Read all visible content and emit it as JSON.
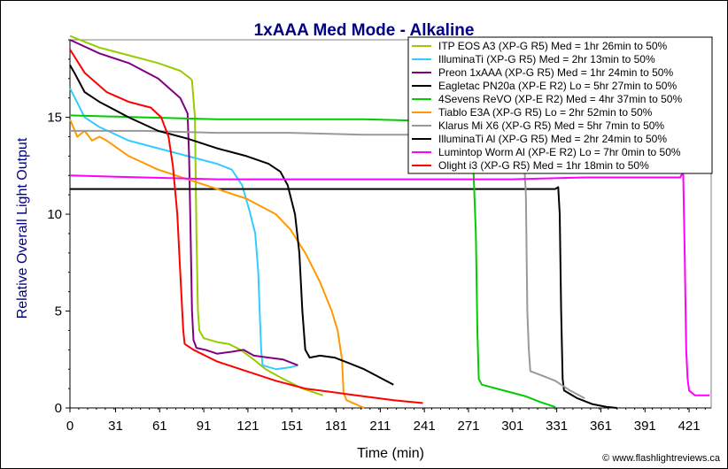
{
  "chart_data": {
    "type": "line",
    "title": "1xAAA Med Mode - Alkaline",
    "xlabel": "Time (min)",
    "ylabel": "Relative Overall Light Output",
    "xlim": [
      0,
      436
    ],
    "ylim": [
      0,
      19
    ],
    "xticks": [
      0,
      31,
      61,
      91,
      121,
      151,
      181,
      211,
      241,
      271,
      301,
      331,
      361,
      391,
      421
    ],
    "yticks": [
      0,
      5,
      10,
      15
    ],
    "grid": false,
    "legend_position": "top-right",
    "credit": "© www.flashlightreviews.ca",
    "series": [
      {
        "name": "ITP EOS A3 (XP-G R5) Med = 1hr 26min to 50%",
        "color": "#99cc00",
        "points": [
          [
            0,
            19.2
          ],
          [
            20,
            18.6
          ],
          [
            40,
            18.2
          ],
          [
            60,
            17.8
          ],
          [
            75,
            17.4
          ],
          [
            82,
            17.0
          ],
          [
            83,
            16.9
          ],
          [
            85,
            15.0
          ],
          [
            86,
            9.0
          ],
          [
            87,
            5.0
          ],
          [
            88,
            4.0
          ],
          [
            91,
            3.6
          ],
          [
            100,
            3.4
          ],
          [
            108,
            3.3
          ],
          [
            116,
            3.0
          ],
          [
            125,
            2.5
          ],
          [
            133,
            2.0
          ],
          [
            145,
            1.5
          ],
          [
            158,
            1.0
          ],
          [
            172,
            0.65
          ]
        ]
      },
      {
        "name": "IlluminaTi (XP-G R5) Med = 2hr 13min to 50%",
        "color": "#33ccff",
        "points": [
          [
            0,
            16.5
          ],
          [
            10,
            15.0
          ],
          [
            20,
            14.5
          ],
          [
            40,
            13.8
          ],
          [
            60,
            13.4
          ],
          [
            80,
            13.0
          ],
          [
            100,
            12.6
          ],
          [
            110,
            12.3
          ],
          [
            117,
            11.5
          ],
          [
            122,
            10.2
          ],
          [
            126,
            9.0
          ],
          [
            128,
            7.0
          ],
          [
            129,
            5.0
          ],
          [
            130,
            3.0
          ],
          [
            131,
            2.2
          ],
          [
            140,
            2.0
          ],
          [
            150,
            2.1
          ],
          [
            155,
            2.2
          ]
        ]
      },
      {
        "name": "Preon 1xAAA (XP-G R5) Med = 1hr 24min to 50%",
        "color": "#800080",
        "points": [
          [
            0,
            19.0
          ],
          [
            20,
            18.3
          ],
          [
            40,
            17.8
          ],
          [
            60,
            17.0
          ],
          [
            75,
            16.0
          ],
          [
            80,
            15.2
          ],
          [
            81,
            13.0
          ],
          [
            82,
            9.0
          ],
          [
            83,
            5.0
          ],
          [
            84,
            3.5
          ],
          [
            86,
            3.1
          ],
          [
            92,
            3.0
          ],
          [
            100,
            2.8
          ],
          [
            110,
            2.9
          ],
          [
            118,
            3.0
          ],
          [
            125,
            2.7
          ],
          [
            135,
            2.6
          ],
          [
            145,
            2.5
          ],
          [
            155,
            2.2
          ]
        ]
      },
      {
        "name": "Eagletac PN20a (XP-E R2) Lo = 5hr 27min to 50%",
        "color": "#000000",
        "points": [
          [
            0,
            11.3
          ],
          [
            50,
            11.3
          ],
          [
            100,
            11.3
          ],
          [
            200,
            11.3
          ],
          [
            300,
            11.3
          ],
          [
            330,
            11.3
          ],
          [
            332,
            11.4
          ],
          [
            333,
            10.0
          ],
          [
            334,
            5.0
          ],
          [
            335,
            1.5
          ],
          [
            336,
            0.9
          ],
          [
            345,
            0.5
          ],
          [
            355,
            0.2
          ],
          [
            365,
            0.05
          ],
          [
            372,
            0.0
          ]
        ]
      },
      {
        "name": "4Sevens ReVO (XP-E R2) Med = 4hr 37min to 50%",
        "color": "#00cc00",
        "points": [
          [
            0,
            15.1
          ],
          [
            50,
            15.0
          ],
          [
            100,
            14.9
          ],
          [
            150,
            14.9
          ],
          [
            200,
            14.9
          ],
          [
            250,
            14.8
          ],
          [
            270,
            14.8
          ],
          [
            274,
            13.0
          ],
          [
            276,
            9.0
          ],
          [
            277,
            4.0
          ],
          [
            278,
            1.5
          ],
          [
            280,
            1.2
          ],
          [
            290,
            1.0
          ],
          [
            300,
            0.8
          ],
          [
            310,
            0.6
          ],
          [
            320,
            0.3
          ],
          [
            330,
            0.05
          ]
        ]
      },
      {
        "name": "Tiablo E3A (XP-G R5) Lo = 2hr 52min to 50%",
        "color": "#ff9900",
        "points": [
          [
            0,
            14.9
          ],
          [
            5,
            14.0
          ],
          [
            10,
            14.3
          ],
          [
            15,
            13.8
          ],
          [
            20,
            14.0
          ],
          [
            25,
            13.8
          ],
          [
            40,
            13.0
          ],
          [
            60,
            12.3
          ],
          [
            80,
            11.8
          ],
          [
            100,
            11.3
          ],
          [
            120,
            10.8
          ],
          [
            140,
            10.0
          ],
          [
            150,
            9.2
          ],
          [
            160,
            8.0
          ],
          [
            170,
            6.5
          ],
          [
            178,
            5.0
          ],
          [
            182,
            4.0
          ],
          [
            185,
            2.5
          ],
          [
            186,
            0.8
          ],
          [
            188,
            0.4
          ],
          [
            200,
            0.0
          ]
        ]
      },
      {
        "name": "Klarus Mi X6 (XP-G R5) Med = 5hr 7min to 50%",
        "color": "#999999",
        "points": [
          [
            0,
            14.3
          ],
          [
            50,
            14.3
          ],
          [
            100,
            14.2
          ],
          [
            150,
            14.2
          ],
          [
            200,
            14.1
          ],
          [
            250,
            14.1
          ],
          [
            300,
            14.0
          ],
          [
            308,
            13.9
          ],
          [
            310,
            11.0
          ],
          [
            311,
            5.0
          ],
          [
            312,
            3.0
          ],
          [
            313,
            1.9
          ],
          [
            320,
            1.7
          ],
          [
            330,
            1.4
          ],
          [
            340,
            0.9
          ],
          [
            350,
            0.5
          ]
        ]
      },
      {
        "name": "IlluminaTi Al (XP-G R5) Med = 2hr 24min to 50%",
        "color": "#000000",
        "points": [
          [
            0,
            17.7
          ],
          [
            3,
            17.3
          ],
          [
            10,
            16.3
          ],
          [
            20,
            15.8
          ],
          [
            40,
            15.0
          ],
          [
            60,
            14.3
          ],
          [
            80,
            13.9
          ],
          [
            100,
            13.4
          ],
          [
            120,
            13.0
          ],
          [
            135,
            12.6
          ],
          [
            143,
            12.2
          ],
          [
            148,
            11.5
          ],
          [
            153,
            10.0
          ],
          [
            156,
            8.0
          ],
          [
            158,
            5.0
          ],
          [
            160,
            3.0
          ],
          [
            163,
            2.6
          ],
          [
            170,
            2.7
          ],
          [
            180,
            2.6
          ],
          [
            190,
            2.3
          ],
          [
            200,
            2.0
          ],
          [
            210,
            1.6
          ],
          [
            220,
            1.2
          ]
        ]
      },
      {
        "name": "Lumintop Worm Al (XP-E R2) Lo = 7hr 0min to 50%",
        "color": "#ff00ff",
        "points": [
          [
            0,
            12.0
          ],
          [
            50,
            11.9
          ],
          [
            100,
            11.8
          ],
          [
            150,
            11.8
          ],
          [
            200,
            11.8
          ],
          [
            250,
            11.8
          ],
          [
            300,
            11.8
          ],
          [
            350,
            11.9
          ],
          [
            400,
            11.9
          ],
          [
            415,
            11.9
          ],
          [
            417,
            12.2
          ],
          [
            418,
            8.0
          ],
          [
            419,
            3.0
          ],
          [
            420,
            1.5
          ],
          [
            421,
            0.9
          ],
          [
            425,
            0.65
          ],
          [
            435,
            0.65
          ]
        ]
      },
      {
        "name": "Olight i3 (XP-G R5) Med = 1hr 18min to 50%",
        "color": "#ff0000",
        "points": [
          [
            0,
            18.5
          ],
          [
            10,
            17.3
          ],
          [
            25,
            16.3
          ],
          [
            40,
            15.8
          ],
          [
            55,
            15.5
          ],
          [
            62,
            15.0
          ],
          [
            67,
            14.0
          ],
          [
            70,
            12.5
          ],
          [
            73,
            10.0
          ],
          [
            75,
            7.0
          ],
          [
            77,
            4.0
          ],
          [
            78,
            3.3
          ],
          [
            84,
            3.0
          ],
          [
            100,
            2.4
          ],
          [
            120,
            1.9
          ],
          [
            140,
            1.4
          ],
          [
            160,
            1.0
          ],
          [
            190,
            0.7
          ],
          [
            220,
            0.4
          ],
          [
            240,
            0.25
          ]
        ]
      }
    ]
  }
}
